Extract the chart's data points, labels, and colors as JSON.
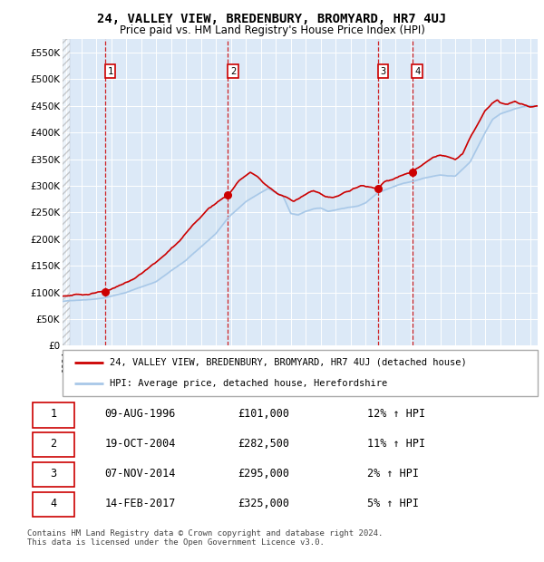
{
  "title": "24, VALLEY VIEW, BREDENBURY, BROMYARD, HR7 4UJ",
  "subtitle": "Price paid vs. HM Land Registry's House Price Index (HPI)",
  "hpi_line_color": "#a8c8e8",
  "hpi_fill_color": "#c8dff0",
  "price_line_color": "#cc0000",
  "marker_color": "#cc0000",
  "dashed_line_color": "#cc0000",
  "bg_color": "#dce9f7",
  "grid_color": "#ffffff",
  "ylim": [
    0,
    575000
  ],
  "xlim_start": 1993.75,
  "xlim_end": 2025.5,
  "legend_label_red": "24, VALLEY VIEW, BREDENBURY, BROMYARD, HR7 4UJ (detached house)",
  "legend_label_blue": "HPI: Average price, detached house, Herefordshire",
  "footer": "Contains HM Land Registry data © Crown copyright and database right 2024.\nThis data is licensed under the Open Government Licence v3.0.",
  "sale_year_floats": [
    1996.6,
    2004.8,
    2014.85,
    2017.12
  ],
  "sale_prices": [
    101000,
    282500,
    295000,
    325000
  ],
  "sale_labels": [
    "1",
    "2",
    "3",
    "4"
  ],
  "table_rows": [
    [
      "1",
      "09-AUG-1996",
      "£101,000",
      "12% ↑ HPI"
    ],
    [
      "2",
      "19-OCT-2004",
      "£282,500",
      "11% ↑ HPI"
    ],
    [
      "3",
      "07-NOV-2014",
      "£295,000",
      "2% ↑ HPI"
    ],
    [
      "4",
      "14-FEB-2017",
      "£325,000",
      "5% ↑ HPI"
    ]
  ]
}
